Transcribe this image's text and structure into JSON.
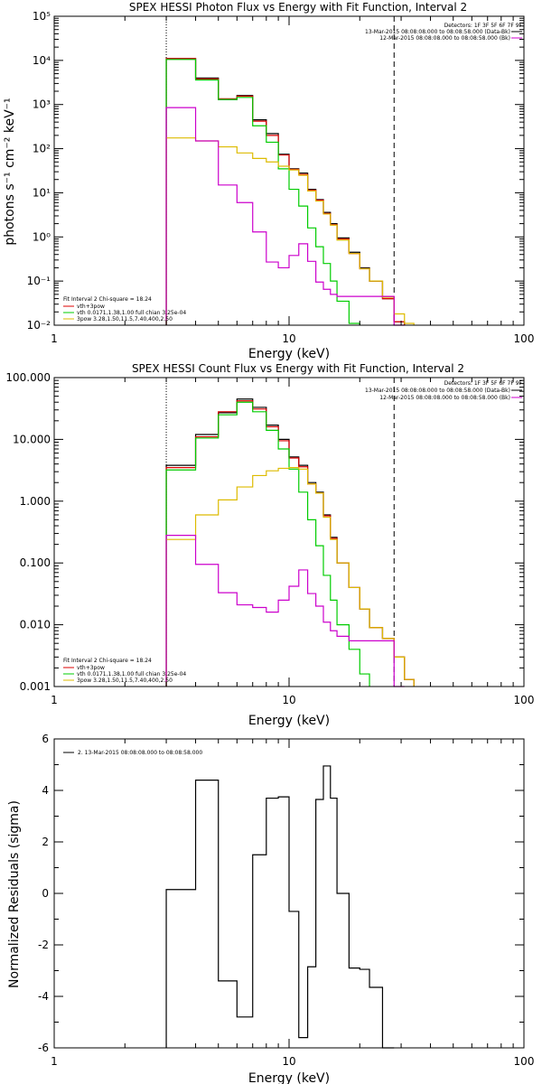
{
  "colors": {
    "data": "#000000",
    "vth_3pow": "#dd0000",
    "vth": "#00cc00",
    "pow": "#ddbb00",
    "bk": "#cc00cc"
  },
  "chart_data": [
    {
      "type": "line",
      "title": "SPEX HESSI Photon Flux vs Energy with Fit Function, Interval 2",
      "xlabel": "Energy (keV)",
      "ylabel": "photons s⁻¹ cm⁻² keV⁻¹",
      "xscale": "log",
      "yscale": "log",
      "xlim": [
        1,
        100
      ],
      "ylim": [
        0.01,
        100000
      ],
      "xticks": [
        "1",
        "10",
        "100"
      ],
      "yticks": [
        "10⁻²",
        "10⁻¹",
        "10⁰",
        "10¹",
        "10²",
        "10³",
        "10⁴",
        "10⁵"
      ],
      "vlines": [
        {
          "x": 3.0,
          "style": "dotted"
        },
        {
          "x": 28.0,
          "style": "dashed"
        }
      ],
      "legend_top": [
        "Detectors: 1F 3F 5F 6F 7F 9F",
        "13-Mar-2015 08:08:08.000 to 08:08:58.000 (Data-Bk)",
        "12-Mar-2015 08:08:08.000 to 08:08:58.000 (Bk)"
      ],
      "legend_bottom_header": "Fit Interval 2   Chi-square = 18.24",
      "legend_bottom": [
        "vth+3pow",
        "vth 0.0171,1.38,1.00  full chian 3.25e-04",
        "3pow 3.28,1.50,11.5,7.40,400,2.50"
      ],
      "bin_edges": [
        3.0,
        4.0,
        5.0,
        6.0,
        7.0,
        8.0,
        9.0,
        10.0,
        11.0,
        12.0,
        13.0,
        14.0,
        15.0,
        16.0,
        18.0,
        20.0,
        22.0,
        25.0,
        28.0,
        31.0,
        34.0
      ],
      "series": [
        {
          "name": "Data-Bk",
          "color": "data",
          "values": [
            11000,
            4000,
            1300,
            1600,
            450,
            220,
            75,
            35,
            28,
            12,
            7,
            3.6,
            2,
            0.95,
            0.45,
            0.2,
            0.1,
            0.04,
            0.012,
            null
          ]
        },
        {
          "name": "vth+3pow",
          "color": "vth_3pow",
          "values": [
            11000,
            3800,
            1350,
            1550,
            420,
            200,
            72,
            34,
            26,
            11.5,
            6.8,
            3.4,
            1.9,
            0.9,
            0.42,
            0.19,
            0.1,
            0.04,
            0.012,
            null
          ]
        },
        {
          "name": "vth",
          "color": "vth",
          "values": [
            10500,
            3600,
            1300,
            1450,
            330,
            140,
            35,
            12,
            5,
            1.6,
            0.6,
            0.25,
            0.1,
            0.035,
            0.011,
            null,
            null,
            null,
            null,
            null
          ]
        },
        {
          "name": "3pow",
          "color": "pow",
          "values": [
            175,
            150,
            110,
            80,
            60,
            50,
            40,
            33,
            25,
            11,
            6.5,
            3.3,
            1.85,
            0.85,
            0.42,
            0.19,
            0.1,
            0.043,
            0.018,
            0.011
          ]
        },
        {
          "name": "Bk",
          "color": "bk",
          "values": [
            850,
            150,
            15,
            6,
            1.3,
            0.27,
            0.2,
            0.38,
            0.7,
            0.28,
            0.095,
            0.065,
            0.05,
            0.045,
            0.045,
            0.045,
            0.045,
            0.045,
            0.01,
            null
          ]
        }
      ]
    },
    {
      "type": "line",
      "title": "SPEX HESSI Count Flux vs Energy with Fit Function, Interval 2",
      "xlabel": "Energy (keV)",
      "ylabel": "",
      "xscale": "log",
      "yscale": "log",
      "xlim": [
        1,
        100
      ],
      "ylim": [
        0.001,
        100
      ],
      "xticks": [
        "1",
        "10",
        "100"
      ],
      "yticks": [
        "0.001",
        "0.010",
        "0.100",
        "1.000",
        "10.000",
        "100.000"
      ],
      "vlines": [
        {
          "x": 3.0,
          "style": "dotted"
        },
        {
          "x": 28.0,
          "style": "dashed"
        }
      ],
      "legend_top": [
        "Detectors: 1F 3F 5F 6F 7F 9F",
        "13-Mar-2015 08:08:08.000 to 08:08:58.000 (Data-Bk)",
        "12-Mar-2015 08:08:08.000 to 08:08:58.000 (Bk)"
      ],
      "legend_bottom_header": "Fit Interval 2   Chi-square = 18.24",
      "legend_bottom": [
        "vth+3pow",
        "vth 0.0171,1.38,1.00  full chian 3.25e-04",
        "3pow 3.28,1.50,11.5,7.40,400,2.50"
      ],
      "bin_edges": [
        3.0,
        4.0,
        5.0,
        6.0,
        7.0,
        8.0,
        9.0,
        10.0,
        11.0,
        12.0,
        13.0,
        14.0,
        15.0,
        16.0,
        18.0,
        20.0,
        22.0,
        25.0,
        28.0,
        31.0,
        34.0
      ],
      "series": [
        {
          "name": "Data-Bk",
          "color": "data",
          "values": [
            3.8,
            12,
            27,
            45,
            33,
            17,
            10,
            5.2,
            3.8,
            2,
            1.4,
            0.6,
            0.26,
            0.1,
            0.04,
            0.018,
            0.009,
            0.006,
            0.003,
            0.0013
          ]
        },
        {
          "name": "vth+3pow",
          "color": "vth_3pow",
          "values": [
            3.5,
            11,
            28,
            42,
            31,
            16,
            9.5,
            5,
            3.6,
            1.9,
            1.35,
            0.58,
            0.25,
            0.1,
            0.04,
            0.018,
            0.009,
            0.006,
            0.003,
            0.0013
          ]
        },
        {
          "name": "vth",
          "color": "vth",
          "values": [
            3.2,
            10.5,
            25,
            40,
            28,
            14,
            7,
            3.3,
            1.4,
            0.5,
            0.19,
            0.063,
            0.025,
            0.01,
            0.004,
            0.0016,
            null,
            null,
            null,
            null
          ]
        },
        {
          "name": "3pow",
          "color": "pow",
          "values": [
            0.24,
            0.6,
            1.05,
            1.7,
            2.6,
            3.1,
            3.4,
            3.5,
            3.3,
            1.9,
            1.35,
            0.55,
            0.24,
            0.1,
            0.04,
            0.018,
            0.009,
            0.006,
            0.003,
            0.0013
          ]
        },
        {
          "name": "Bk",
          "color": "bk",
          "values": [
            0.28,
            0.095,
            0.033,
            0.021,
            0.019,
            0.016,
            0.025,
            0.042,
            0.077,
            0.032,
            0.02,
            0.011,
            0.008,
            0.0065,
            0.0055,
            0.0055,
            0.0055,
            0.0055,
            0.0008,
            null
          ]
        }
      ]
    },
    {
      "type": "line",
      "title": "",
      "xlabel": "Energy (keV)",
      "ylabel": "Normalized Residuals (sigma)",
      "xscale": "log",
      "yscale": "linear",
      "xlim": [
        1,
        100
      ],
      "ylim": [
        -6,
        6
      ],
      "xticks": [
        "1",
        "10",
        "100"
      ],
      "yticks": [
        "-6",
        "-4",
        "-2",
        "0",
        "2",
        "4",
        "6"
      ],
      "legend_top": [
        "2. 13-Mar-2015 08:08:08.000 to 08:08:58.000"
      ],
      "bin_edges": [
        3.0,
        4.0,
        5.0,
        6.0,
        7.0,
        8.0,
        9.0,
        10.0,
        11.0,
        12.0,
        13.0,
        14.0,
        15.0,
        16.0,
        18.0,
        20.0,
        22.0,
        25.0,
        28.0
      ],
      "series": [
        {
          "name": "residuals",
          "color": "data",
          "values": [
            0.15,
            4.4,
            -3.4,
            -4.8,
            1.5,
            3.7,
            3.75,
            -0.7,
            -5.6,
            -2.85,
            3.65,
            4.95,
            3.7,
            0.0,
            -2.9,
            -2.95,
            -3.65,
            -6.0
          ]
        }
      ]
    }
  ]
}
